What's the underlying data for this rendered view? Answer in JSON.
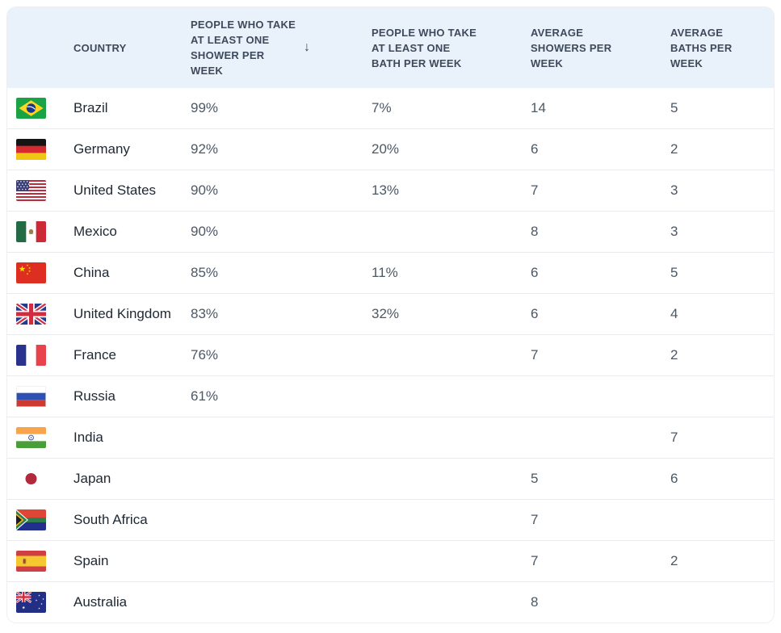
{
  "table": {
    "columns": [
      {
        "id": "flag",
        "label": ""
      },
      {
        "id": "country",
        "label": "COUNTRY"
      },
      {
        "id": "shower_pct",
        "label": "PEOPLE WHO TAKE AT LEAST ONE SHOWER PER WEEK"
      },
      {
        "id": "bath_pct",
        "label": "PEOPLE WHO TAKE AT LEAST ONE BATH PER WEEK"
      },
      {
        "id": "avg_showers",
        "label": "AVERAGE SHOWERS PER WEEK"
      },
      {
        "id": "avg_baths",
        "label": "AVERAGE BATHS PER WEEK"
      }
    ],
    "sort": {
      "column": "shower_pct",
      "direction": "descending",
      "icon": "arrow-down",
      "glyph": "↓"
    },
    "rows": [
      {
        "flag_icon": "brazil-flag-icon",
        "country": "Brazil",
        "shower_pct": "99%",
        "bath_pct": "7%",
        "avg_showers": "14",
        "avg_baths": "5"
      },
      {
        "flag_icon": "germany-flag-icon",
        "country": "Germany",
        "shower_pct": "92%",
        "bath_pct": "20%",
        "avg_showers": "6",
        "avg_baths": "2"
      },
      {
        "flag_icon": "united-states-flag-icon",
        "country": "United States",
        "shower_pct": "90%",
        "bath_pct": "13%",
        "avg_showers": "7",
        "avg_baths": "3"
      },
      {
        "flag_icon": "mexico-flag-icon",
        "country": "Mexico",
        "shower_pct": "90%",
        "bath_pct": "",
        "avg_showers": "8",
        "avg_baths": "3"
      },
      {
        "flag_icon": "china-flag-icon",
        "country": "China",
        "shower_pct": "85%",
        "bath_pct": "11%",
        "avg_showers": "6",
        "avg_baths": "5"
      },
      {
        "flag_icon": "united-kingdom-flag-icon",
        "country": "United Kingdom",
        "shower_pct": "83%",
        "bath_pct": "32%",
        "avg_showers": "6",
        "avg_baths": "4"
      },
      {
        "flag_icon": "france-flag-icon",
        "country": "France",
        "shower_pct": "76%",
        "bath_pct": "",
        "avg_showers": "7",
        "avg_baths": "2"
      },
      {
        "flag_icon": "russia-flag-icon",
        "country": "Russia",
        "shower_pct": "61%",
        "bath_pct": "",
        "avg_showers": "",
        "avg_baths": ""
      },
      {
        "flag_icon": "india-flag-icon",
        "country": "India",
        "shower_pct": "",
        "bath_pct": "",
        "avg_showers": "",
        "avg_baths": "7"
      },
      {
        "flag_icon": "japan-flag-icon",
        "country": "Japan",
        "shower_pct": "",
        "bath_pct": "",
        "avg_showers": "5",
        "avg_baths": "6"
      },
      {
        "flag_icon": "south-africa-flag-icon",
        "country": "South Africa",
        "shower_pct": "",
        "bath_pct": "",
        "avg_showers": "7",
        "avg_baths": ""
      },
      {
        "flag_icon": "spain-flag-icon",
        "country": "Spain",
        "shower_pct": "",
        "bath_pct": "",
        "avg_showers": "7",
        "avg_baths": "2"
      },
      {
        "flag_icon": "australia-flag-icon",
        "country": "Australia",
        "shower_pct": "",
        "bath_pct": "",
        "avg_showers": "8",
        "avg_baths": ""
      }
    ]
  },
  "colors": {
    "header_bg": "#E9F2FB",
    "header_text": "#3E4A5B",
    "country_text": "#1E2732",
    "value_text": "#4C5866",
    "row_divider": "#E9EBEE",
    "container_border": "#ECEEF1",
    "page_bg": "#FFFFFF"
  },
  "chart_data": {
    "type": "table",
    "columns": [
      "Country",
      "People who take at least one shower per week",
      "People who take at least one bath per week",
      "Average showers per week",
      "Average baths per week"
    ],
    "rows": [
      [
        "Brazil",
        99,
        7,
        14,
        5
      ],
      [
        "Germany",
        92,
        20,
        6,
        2
      ],
      [
        "United States",
        90,
        13,
        7,
        3
      ],
      [
        "Mexico",
        90,
        null,
        8,
        3
      ],
      [
        "China",
        85,
        11,
        6,
        5
      ],
      [
        "United Kingdom",
        83,
        32,
        6,
        4
      ],
      [
        "France",
        76,
        null,
        7,
        2
      ],
      [
        "Russia",
        61,
        null,
        null,
        null
      ],
      [
        "India",
        null,
        null,
        null,
        7
      ],
      [
        "Japan",
        null,
        null,
        5,
        6
      ],
      [
        "South Africa",
        null,
        null,
        7,
        null
      ],
      [
        "Spain",
        null,
        null,
        7,
        2
      ],
      [
        "Australia",
        null,
        null,
        8,
        null
      ]
    ],
    "sort": "People who take at least one shower per week, descending"
  }
}
